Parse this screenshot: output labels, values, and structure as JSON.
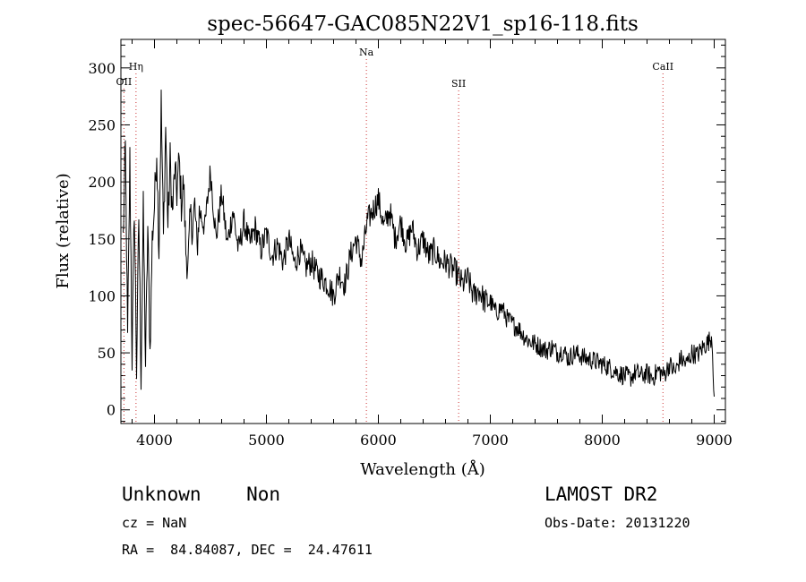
{
  "chart_data": {
    "type": "line",
    "title": "spec-56647-GAC085N22V1_sp16-118.fits",
    "xlabel": "Wavelength (Å)",
    "ylabel": "Flux (relative)",
    "xlim": [
      3700,
      9100
    ],
    "ylim": [
      -12,
      325
    ],
    "x_ticks": [
      4000,
      5000,
      6000,
      7000,
      8000,
      9000
    ],
    "y_ticks": [
      0,
      50,
      100,
      150,
      200,
      250,
      300
    ],
    "grid": false,
    "line_color": "#000000",
    "marker_color": "#cc3333",
    "lines": [
      {
        "label": "OII",
        "x": 3727
      },
      {
        "label": "Hη",
        "x": 3835
      },
      {
        "label": "Na",
        "x": 5893
      },
      {
        "label": "SII",
        "x": 6717
      },
      {
        "label": "CaII",
        "x": 8542
      }
    ],
    "series": [
      {
        "x": [
          3720,
          3740,
          3760,
          3780,
          3800,
          3820,
          3840,
          3860,
          3880,
          3900,
          3920,
          3940,
          3960,
          3980,
          4000,
          4020,
          4040,
          4060,
          4080,
          4100,
          4120,
          4140,
          4160,
          4180,
          4200,
          4220,
          4240,
          4260,
          4280,
          4300,
          4320,
          4340,
          4360,
          4380,
          4400,
          4450,
          4500,
          4550,
          4600,
          4650,
          4700,
          4750,
          4800,
          4850,
          4900,
          4950,
          5000,
          5050,
          5100,
          5150,
          5200,
          5250,
          5300,
          5350,
          5400,
          5450,
          5500,
          5550,
          5600,
          5650,
          5700,
          5750,
          5800,
          5850,
          5900,
          5950,
          6000,
          6050,
          6100,
          6150,
          6200,
          6250,
          6300,
          6350,
          6400,
          6450,
          6500,
          6550,
          6600,
          6650,
          6700,
          6750,
          6800,
          6850,
          6900,
          6950,
          7000,
          7050,
          7100,
          7150,
          7200,
          7250,
          7300,
          7350,
          7400,
          7450,
          7500,
          7550,
          7600,
          7650,
          7700,
          7750,
          7800,
          7850,
          7900,
          7950,
          8000,
          8050,
          8100,
          8150,
          8200,
          8250,
          8300,
          8350,
          8400,
          8450,
          8500,
          8550,
          8600,
          8650,
          8700,
          8750,
          8800,
          8850,
          8900,
          8950,
          8980,
          9000
        ],
        "values": [
          150,
          230,
          60,
          220,
          45,
          180,
          35,
          170,
          30,
          175,
          40,
          160,
          50,
          150,
          180,
          230,
          140,
          270,
          150,
          250,
          160,
          220,
          170,
          210,
          190,
          220,
          180,
          200,
          140,
          125,
          170,
          160,
          180,
          140,
          175,
          160,
          210,
          150,
          190,
          145,
          175,
          140,
          165,
          145,
          160,
          140,
          155,
          135,
          145,
          130,
          150,
          128,
          140,
          125,
          130,
          120,
          115,
          110,
          100,
          120,
          110,
          135,
          150,
          130,
          165,
          175,
          185,
          160,
          175,
          150,
          165,
          145,
          160,
          140,
          150,
          135,
          140,
          130,
          130,
          125,
          120,
          110,
          115,
          100,
          105,
          95,
          95,
          85,
          90,
          80,
          75,
          72,
          65,
          60,
          58,
          55,
          52,
          55,
          50,
          52,
          45,
          50,
          48,
          45,
          44,
          42,
          40,
          38,
          35,
          32,
          30,
          28,
          33,
          30,
          32,
          28,
          35,
          30,
          40,
          33,
          45,
          40,
          50,
          48,
          55,
          60,
          65,
          10
        ]
      }
    ]
  },
  "caption": {
    "class_text": "Unknown    Non",
    "survey_text": "LAMOST DR2",
    "cz_text": "cz = NaN",
    "obs_date_text": "Obs-Date: 20131220",
    "coords_text": "RA =  84.84087, DEC =  24.47611"
  }
}
